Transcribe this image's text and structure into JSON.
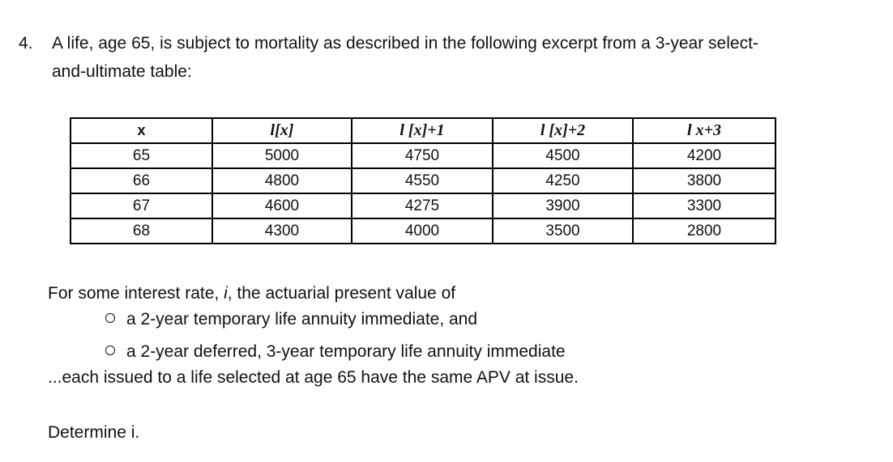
{
  "question": {
    "number": "4.",
    "intro_line_1": "A life, age 65, is subject to mortality as described in the following excerpt from a 3-year select-",
    "intro_line_2": "and-ultimate table:"
  },
  "table": {
    "headers": [
      "x",
      "l[x]",
      "l [x]+1",
      "l [x]+2",
      "l x+3"
    ],
    "rows": [
      [
        "65",
        "5000",
        "4750",
        "4500",
        "4200"
      ],
      [
        "66",
        "4800",
        "4550",
        "4250",
        "3800"
      ],
      [
        "67",
        "4600",
        "4275",
        "3900",
        "3300"
      ],
      [
        "68",
        "4300",
        "4000",
        "3500",
        "2800"
      ]
    ]
  },
  "body": {
    "intro_prefix": "For some interest rate, ",
    "intro_var": "i",
    "intro_suffix": ", the actuarial present value of",
    "bullets": [
      "a 2-year temporary life annuity immediate, and",
      "a 2-year deferred, 3-year temporary life annuity immediate"
    ],
    "conclusion": "...each issued to a life selected at age 65 have the same APV at issue.",
    "prompt": "Determine i."
  }
}
